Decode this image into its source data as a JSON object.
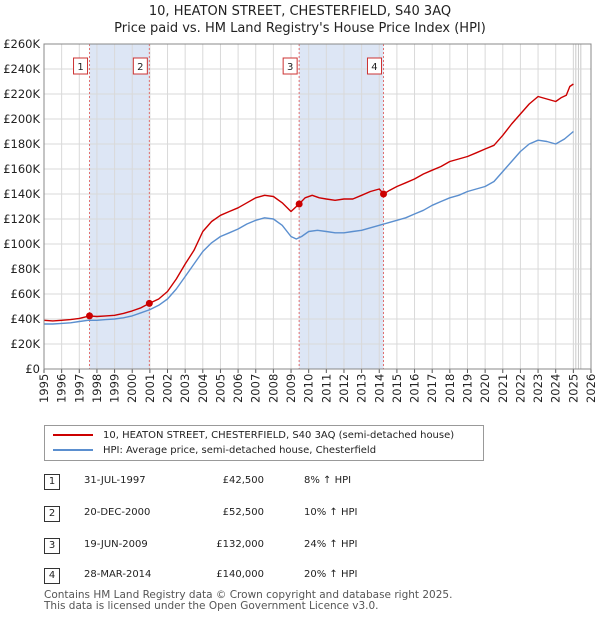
{
  "title_line1": "10, HEATON STREET, CHESTERFIELD, S40 3AQ",
  "title_line2": "Price paid vs. HM Land Registry's House Price Index (HPI)",
  "colors": {
    "property": "#cc0000",
    "hpi": "#5b8fcf",
    "shade": "#dde6f5",
    "grid": "#d9d9d9",
    "vline": "#e07070"
  },
  "chart_data": {
    "type": "line",
    "xlabel": "",
    "ylabel": "",
    "xlim": [
      1995,
      2026
    ],
    "ylim": [
      0,
      260000
    ],
    "x_ticks": [
      "1995",
      "1996",
      "1997",
      "1998",
      "1999",
      "2000",
      "2001",
      "2002",
      "2003",
      "2004",
      "2005",
      "2006",
      "2007",
      "2008",
      "2009",
      "2010",
      "2011",
      "2012",
      "2013",
      "2014",
      "2015",
      "2016",
      "2017",
      "2018",
      "2019",
      "2020",
      "2021",
      "2022",
      "2023",
      "2024",
      "2025",
      "2026"
    ],
    "y_ticks": [
      {
        "v": 0,
        "label": "£0"
      },
      {
        "v": 20000,
        "label": "£20K"
      },
      {
        "v": 40000,
        "label": "£40K"
      },
      {
        "v": 60000,
        "label": "£60K"
      },
      {
        "v": 80000,
        "label": "£80K"
      },
      {
        "v": 100000,
        "label": "£100K"
      },
      {
        "v": 120000,
        "label": "£120K"
      },
      {
        "v": 140000,
        "label": "£140K"
      },
      {
        "v": 160000,
        "label": "£160K"
      },
      {
        "v": 180000,
        "label": "£180K"
      },
      {
        "v": 200000,
        "label": "£200K"
      },
      {
        "v": 220000,
        "label": "£220K"
      },
      {
        "v": 240000,
        "label": "£240K"
      },
      {
        "v": 260000,
        "label": "£260K"
      }
    ],
    "shaded_ranges": [
      [
        1997.58,
        2000.97
      ],
      [
        2009.46,
        2014.24
      ]
    ],
    "future_start": 2025.0,
    "series": [
      {
        "name": "10, HEATON STREET, CHESTERFIELD, S40 3AQ (semi-detached house)",
        "color": "#cc0000",
        "x": [
          1995.0,
          1995.5,
          1996.0,
          1996.5,
          1997.0,
          1997.58,
          1998.0,
          1998.5,
          1999.0,
          1999.5,
          2000.0,
          2000.5,
          2000.97,
          2001.5,
          2002.0,
          2002.5,
          2003.0,
          2003.5,
          2004.0,
          2004.5,
          2005.0,
          2005.5,
          2006.0,
          2006.5,
          2007.0,
          2007.5,
          2008.0,
          2008.5,
          2009.0,
          2009.46,
          2009.8,
          2010.2,
          2010.6,
          2011.0,
          2011.5,
          2012.0,
          2012.5,
          2013.0,
          2013.5,
          2014.0,
          2014.24,
          2014.6,
          2015.0,
          2015.5,
          2016.0,
          2016.5,
          2017.0,
          2017.5,
          2018.0,
          2018.5,
          2019.0,
          2019.5,
          2020.0,
          2020.5,
          2021.0,
          2021.5,
          2022.0,
          2022.5,
          2023.0,
          2023.5,
          2024.0,
          2024.3,
          2024.6,
          2024.8,
          2025.0
        ],
        "y": [
          39000,
          38500,
          39000,
          39500,
          40500,
          42500,
          42000,
          42500,
          43000,
          44500,
          46500,
          49000,
          52500,
          56000,
          62000,
          72000,
          84000,
          95000,
          110000,
          118000,
          123000,
          126000,
          129000,
          133000,
          137000,
          139000,
          138000,
          133000,
          126000,
          132000,
          137000,
          139000,
          137000,
          136000,
          135000,
          136000,
          136000,
          139000,
          142000,
          144000,
          140000,
          143000,
          146000,
          149000,
          152000,
          156000,
          159000,
          162000,
          166000,
          168000,
          170000,
          173000,
          176000,
          179000,
          187000,
          196000,
          204000,
          212000,
          218000,
          216000,
          214000,
          217000,
          219000,
          226000,
          228000
        ]
      },
      {
        "name": "HPI: Average price, semi-detached house, Chesterfield",
        "color": "#5b8fcf",
        "x": [
          1995.0,
          1995.5,
          1996.0,
          1996.5,
          1997.0,
          1997.5,
          1998.0,
          1998.5,
          1999.0,
          1999.5,
          2000.0,
          2000.5,
          2001.0,
          2001.5,
          2002.0,
          2002.5,
          2003.0,
          2003.5,
          2004.0,
          2004.5,
          2005.0,
          2005.5,
          2006.0,
          2006.5,
          2007.0,
          2007.5,
          2008.0,
          2008.5,
          2009.0,
          2009.3,
          2009.6,
          2010.0,
          2010.5,
          2011.0,
          2011.5,
          2012.0,
          2012.5,
          2013.0,
          2013.5,
          2014.0,
          2014.5,
          2015.0,
          2015.5,
          2016.0,
          2016.5,
          2017.0,
          2017.5,
          2018.0,
          2018.5,
          2019.0,
          2019.5,
          2020.0,
          2020.5,
          2021.0,
          2021.5,
          2022.0,
          2022.5,
          2023.0,
          2023.5,
          2024.0,
          2024.5,
          2025.0
        ],
        "y": [
          36000,
          36000,
          36500,
          37000,
          38000,
          39000,
          39000,
          39500,
          40000,
          41000,
          42500,
          45000,
          47500,
          51000,
          56000,
          64000,
          74000,
          84000,
          94000,
          101000,
          106000,
          109000,
          112000,
          116000,
          119000,
          121000,
          120000,
          115000,
          106000,
          104000,
          106000,
          110000,
          111000,
          110000,
          109000,
          109000,
          110000,
          111000,
          113000,
          115000,
          117000,
          119000,
          121000,
          124000,
          127000,
          131000,
          134000,
          137000,
          139000,
          142000,
          144000,
          146000,
          150000,
          158000,
          166000,
          174000,
          180000,
          183000,
          182000,
          180000,
          184000,
          190000
        ]
      }
    ],
    "sale_points": [
      {
        "x": 1997.58,
        "y": 42500
      },
      {
        "x": 2000.97,
        "y": 52500
      },
      {
        "x": 2009.46,
        "y": 132000
      },
      {
        "x": 2014.24,
        "y": 140000
      }
    ]
  },
  "markers": [
    {
      "label": "1",
      "x": 1997.58
    },
    {
      "label": "2",
      "x": 2000.97
    },
    {
      "label": "3",
      "x": 2009.46
    },
    {
      "label": "4",
      "x": 2014.24
    }
  ],
  "legend": {
    "property_label": "10, HEATON STREET, CHESTERFIELD, S40 3AQ (semi-detached house)",
    "hpi_label": "HPI: Average price, semi-detached house, Chesterfield"
  },
  "sales": [
    {
      "num": "1",
      "date": "31-JUL-1997",
      "price": "£42,500",
      "pct": "8% ↑ HPI"
    },
    {
      "num": "2",
      "date": "20-DEC-2000",
      "price": "£52,500",
      "pct": "10% ↑ HPI"
    },
    {
      "num": "3",
      "date": "19-JUN-2009",
      "price": "£132,000",
      "pct": "24% ↑ HPI"
    },
    {
      "num": "4",
      "date": "28-MAR-2014",
      "price": "£140,000",
      "pct": "20% ↑ HPI"
    }
  ],
  "footer": {
    "line1": "Contains HM Land Registry data © Crown copyright and database right 2025.",
    "line2": "This data is licensed under the Open Government Licence v3.0."
  }
}
